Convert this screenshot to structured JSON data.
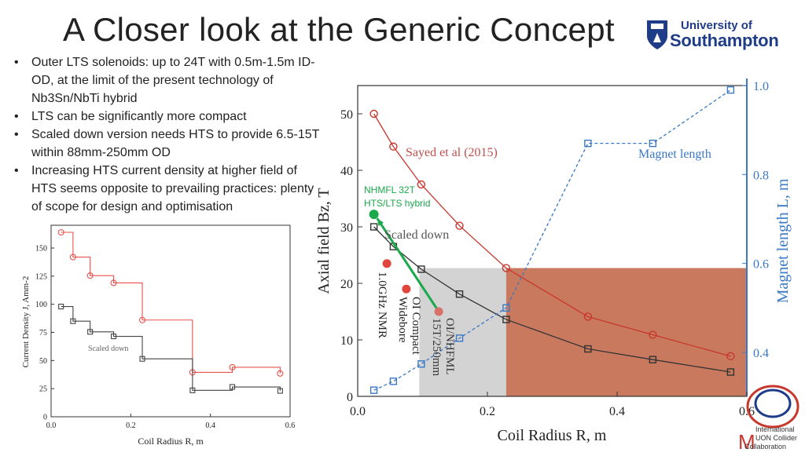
{
  "slide": {
    "title": "A Closer look at the Generic Concept",
    "bullets": [
      "Outer LTS solenoids: up to 24T with 0.5m-1.5m ID-OD, at the limit of the present technology  of Nb3Sn/NbTi hybrid",
      "LTS can be significantly more compact",
      "Scaled down version needs HTS to provide 6.5-15T within 88mm-250mm OD",
      "Increasing HTS current density at higher field of HTS seems opposite to prevailing practices: plenty of scope for design and optimisation"
    ],
    "logo": {
      "line1": "University of",
      "line2": "Southampton"
    },
    "collab_logo": {
      "line1": "International",
      "line2": "UON Collider",
      "line3": "Collaboration",
      "letter": "M"
    }
  },
  "colors": {
    "red": "#c8372d",
    "black": "#333333",
    "blue": "#3a78c3",
    "green": "#1aa94a",
    "gray_region": "#d3d3d3",
    "orange_region": "#c97a5e",
    "point_red": "#e0463c"
  },
  "chart_data": [
    {
      "type": "line",
      "xlabel": "Coil Radius R, m",
      "ylabel": "Axial field Bz, T",
      "y2label": "Magnet length L, m",
      "xlim": [
        0.0,
        0.6
      ],
      "ylim": [
        0,
        55
      ],
      "y2lim": [
        0.3,
        1.0
      ],
      "xticks": [
        "0.0",
        "0.2",
        "0.4",
        "0.6"
      ],
      "yticks": [
        "0",
        "10",
        "20",
        "30",
        "40",
        "50"
      ],
      "y2ticks": [
        "0.4",
        "0.6",
        "0.8",
        "1.0"
      ],
      "x": [
        0.025,
        0.055,
        0.098,
        0.157,
        0.229,
        0.355,
        0.455,
        0.575
      ],
      "series": [
        {
          "name": "Sayed et al (2015)",
          "axis": "left",
          "marker": "circle",
          "values": [
            50,
            44.2,
            37.5,
            30.2,
            22.7,
            14.1,
            10.9,
            7.1
          ]
        },
        {
          "name": "Scaled down",
          "axis": "left",
          "marker": "square",
          "values": [
            30,
            26.5,
            22.5,
            18.1,
            13.6,
            8.4,
            6.5,
            4.3
          ]
        },
        {
          "name": "Magnet length",
          "axis": "right",
          "marker": "square",
          "dashed": true,
          "values": [
            0.315,
            0.335,
            0.374,
            0.432,
            0.5,
            0.87,
            0.87,
            0.99
          ]
        }
      ],
      "points": [
        {
          "label": [
            "NHMFL 32T",
            "HTS/LTS hybrid"
          ],
          "x": 0.025,
          "y": 32.2,
          "color": "green"
        },
        {
          "label": [
            "1.0GHz NMR"
          ],
          "x": 0.045,
          "y": 23.5,
          "color": "red"
        },
        {
          "label": [
            "OI Compact",
            "Widebore"
          ],
          "x": 0.075,
          "y": 19,
          "color": "red"
        },
        {
          "label": [
            "OI/NHFML",
            "15T/250mm"
          ],
          "x": 0.125,
          "y": 15,
          "color": "pink"
        }
      ],
      "arrow": {
        "from": [
          0.125,
          15
        ],
        "to": [
          0.03,
          31.5
        ]
      },
      "regions": [
        {
          "x": [
            0.095,
            0.229
          ],
          "y": [
            0,
            22.7
          ],
          "color": "gray"
        },
        {
          "x": [
            0.229,
            0.6
          ],
          "y": [
            0,
            22.7
          ],
          "color": "orange"
        }
      ]
    },
    {
      "type": "line",
      "step": true,
      "xlabel": "Coil Radius R, m",
      "ylabel": "Current Density J, Amm-2",
      "xlim": [
        0.0,
        0.6
      ],
      "ylim": [
        0,
        170
      ],
      "xticks": [
        "0.0",
        "0.2",
        "0.4",
        "0.6"
      ],
      "yticks": [
        "0",
        "25",
        "50",
        "75",
        "100",
        "125",
        "150"
      ],
      "x": [
        0.025,
        0.055,
        0.098,
        0.157,
        0.229,
        0.355,
        0.455,
        0.575
      ],
      "series": [
        {
          "marker": "circle",
          "color": "red",
          "values": [
            164,
            142,
            125.5,
            119,
            86,
            39.5,
            44,
            38.5
          ]
        },
        {
          "name": "Scaled down",
          "marker": "square",
          "color": "black",
          "values": [
            98,
            85,
            75.5,
            71.5,
            51.5,
            23.5,
            26.5,
            23
          ]
        }
      ]
    }
  ]
}
